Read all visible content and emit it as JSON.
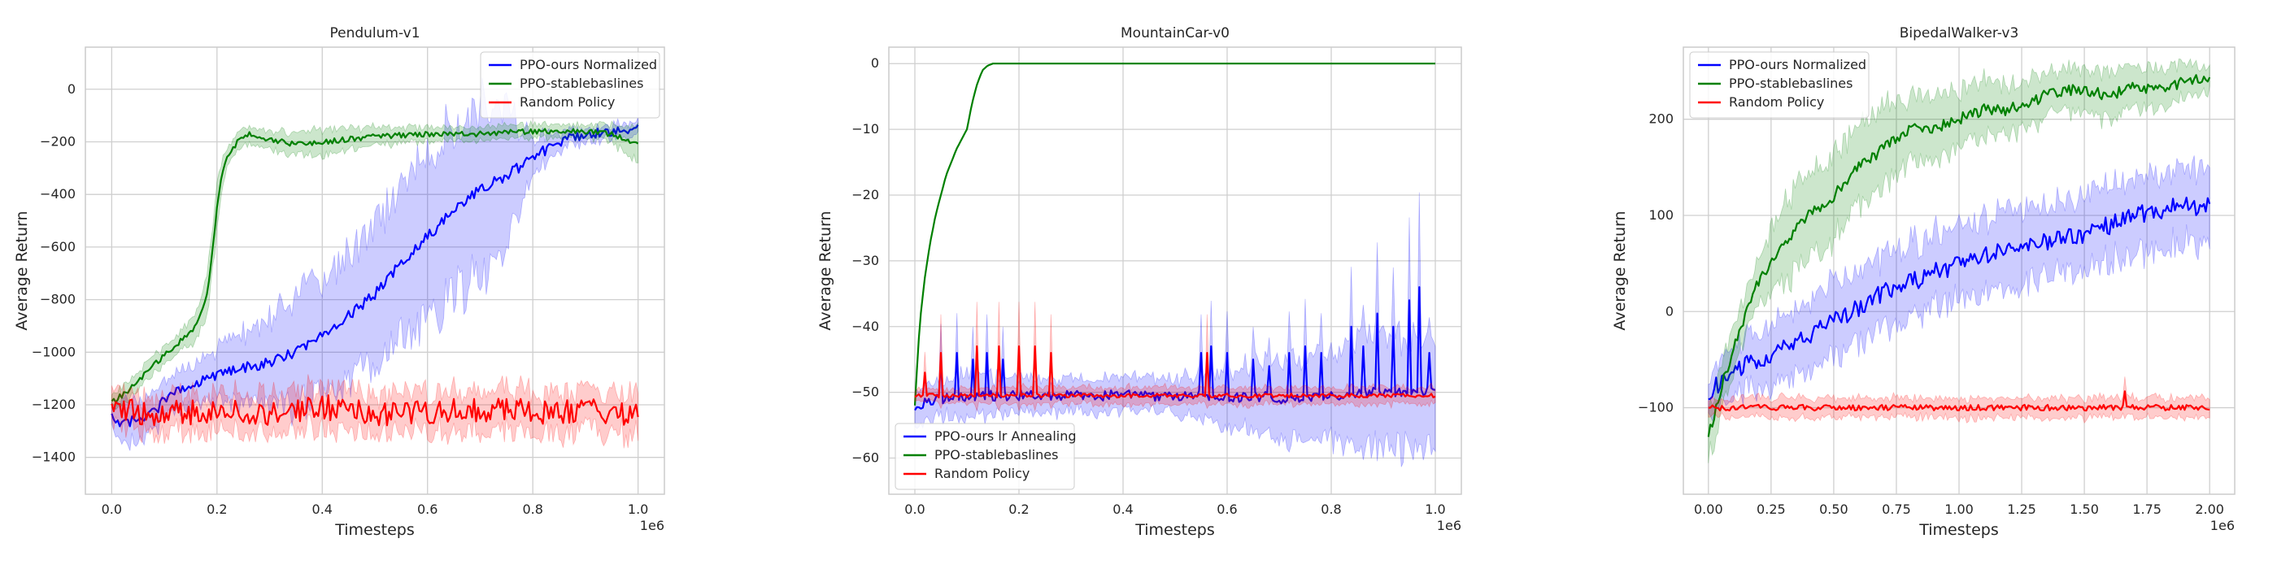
{
  "figure": {
    "background": "#ffffff",
    "grid_color": "#cfcfcf",
    "frame_color": "#cccccc"
  },
  "chart_data": [
    {
      "type": "line",
      "title": "Pendulum-v1",
      "xlabel": "Timesteps",
      "ylabel": "Average Return",
      "x_offset_label": "1e6",
      "xlim": [
        -0.05,
        1.05
      ],
      "ylim": [
        -1540,
        160
      ],
      "xticks": [
        0.0,
        0.2,
        0.4,
        0.6,
        0.8,
        1.0
      ],
      "xtick_labels": [
        "0.0",
        "0.2",
        "0.4",
        "0.6",
        "0.8",
        "1.0"
      ],
      "yticks": [
        -1400,
        -1200,
        -1000,
        -800,
        -600,
        -400,
        -200,
        0
      ],
      "ytick_labels": [
        "−1400",
        "−1200",
        "−1000",
        "−800",
        "−600",
        "−400",
        "−200",
        "0"
      ],
      "grid": true,
      "legend_position": "top-right",
      "series": [
        {
          "name": "PPO-ours Normalized",
          "color": "#0000ff",
          "noise": 20,
          "x": [
            0.0,
            0.02,
            0.05,
            0.08,
            0.1,
            0.12,
            0.15,
            0.2,
            0.25,
            0.3,
            0.35,
            0.4,
            0.45,
            0.5,
            0.55,
            0.6,
            0.65,
            0.7,
            0.75,
            0.8,
            0.85,
            0.9,
            0.95,
            1.0
          ],
          "y": [
            -1240,
            -1280,
            -1250,
            -1230,
            -1180,
            -1150,
            -1120,
            -1090,
            -1060,
            -1040,
            -1000,
            -930,
            -860,
            -780,
            -660,
            -560,
            -460,
            -380,
            -330,
            -260,
            -200,
            -170,
            -160,
            -150
          ],
          "band": [
            40,
            90,
            90,
            80,
            80,
            80,
            90,
            110,
            160,
            200,
            250,
            250,
            280,
            300,
            330,
            400,
            380,
            380,
            300,
            80,
            40,
            30,
            30,
            30
          ]
        },
        {
          "name": "PPO-stablebaslines",
          "color": "#008000",
          "noise": 10,
          "x": [
            0.0,
            0.03,
            0.06,
            0.1,
            0.13,
            0.16,
            0.18,
            0.19,
            0.2,
            0.21,
            0.22,
            0.24,
            0.26,
            0.3,
            0.35,
            0.4,
            0.45,
            0.5,
            0.6,
            0.7,
            0.8,
            0.9,
            0.95,
            1.0
          ],
          "y": [
            -1190,
            -1150,
            -1090,
            -1010,
            -960,
            -900,
            -800,
            -650,
            -450,
            -320,
            -250,
            -200,
            -170,
            -190,
            -210,
            -200,
            -190,
            -180,
            -170,
            -170,
            -160,
            -160,
            -170,
            -210
          ],
          "band": [
            30,
            40,
            40,
            40,
            40,
            60,
            90,
            90,
            90,
            60,
            40,
            40,
            40,
            40,
            50,
            60,
            50,
            40,
            30,
            30,
            30,
            30,
            40,
            80
          ]
        },
        {
          "name": "Random Policy",
          "color": "#ff0000",
          "noise": 50,
          "x": [
            0.0,
            0.1,
            0.2,
            0.3,
            0.4,
            0.5,
            0.6,
            0.7,
            0.8,
            0.9,
            1.0
          ],
          "y": [
            -1220,
            -1230,
            -1220,
            -1230,
            -1210,
            -1230,
            -1230,
            -1220,
            -1230,
            -1220,
            -1240
          ],
          "band": [
            70,
            80,
            80,
            90,
            90,
            90,
            90,
            90,
            90,
            90,
            90
          ]
        }
      ]
    },
    {
      "type": "line",
      "title": "MountainCar-v0",
      "xlabel": "Timesteps",
      "ylabel": "Average Return",
      "x_offset_label": "1e6",
      "xlim": [
        -0.05,
        1.05
      ],
      "ylim": [
        -65.5,
        2.5
      ],
      "xticks": [
        0.0,
        0.2,
        0.4,
        0.6,
        0.8,
        1.0
      ],
      "xtick_labels": [
        "0.0",
        "0.2",
        "0.4",
        "0.6",
        "0.8",
        "1.0"
      ],
      "yticks": [
        -60,
        -50,
        -40,
        -30,
        -20,
        -10,
        0
      ],
      "ytick_labels": [
        "−60",
        "−50",
        "−40",
        "−30",
        "−20",
        "−10",
        "0"
      ],
      "grid": true,
      "legend_position": "bottom-left",
      "series": [
        {
          "name": "PPO-ours lr Annealing",
          "color": "#0000ff",
          "noise": 0.8,
          "x": [
            0.0,
            0.05,
            0.1,
            0.2,
            0.3,
            0.4,
            0.5,
            0.55,
            0.6,
            0.65,
            0.7,
            0.75,
            0.8,
            0.85,
            0.9,
            0.95,
            1.0
          ],
          "y": [
            -52,
            -51,
            -50.5,
            -50.5,
            -50.5,
            -50.5,
            -50.5,
            -50.5,
            -51,
            -50.5,
            -51,
            -51,
            -50.5,
            -50,
            -50,
            -50,
            -50
          ],
          "band": [
            3,
            3,
            4,
            3,
            3,
            3,
            3,
            4,
            5,
            6,
            7,
            7,
            8,
            10,
            10,
            10,
            10
          ],
          "spikes": [
            [
              0.05,
              -45
            ],
            [
              0.08,
              -44
            ],
            [
              0.11,
              -45
            ],
            [
              0.14,
              -44
            ],
            [
              0.17,
              -45
            ],
            [
              0.55,
              -44
            ],
            [
              0.57,
              -43
            ],
            [
              0.6,
              -44
            ],
            [
              0.65,
              -45
            ],
            [
              0.68,
              -46
            ],
            [
              0.72,
              -44
            ],
            [
              0.75,
              -43
            ],
            [
              0.78,
              -44
            ],
            [
              0.84,
              -40
            ],
            [
              0.86,
              -43
            ],
            [
              0.89,
              -38
            ],
            [
              0.92,
              -40
            ],
            [
              0.95,
              -36
            ],
            [
              0.97,
              -34
            ],
            [
              0.99,
              -44
            ]
          ]
        },
        {
          "name": "PPO-stablebaslines",
          "color": "#008000",
          "noise": 0,
          "x": [
            0.0,
            0.005,
            0.01,
            0.02,
            0.03,
            0.04,
            0.05,
            0.06,
            0.07,
            0.08,
            0.09,
            0.1,
            0.11,
            0.12,
            0.13,
            0.14,
            0.15,
            0.2,
            0.4,
            0.6,
            0.8,
            1.0
          ],
          "y": [
            -52,
            -45,
            -39,
            -32,
            -27,
            -23,
            -20,
            -17,
            -15,
            -13,
            -11.5,
            -10,
            -6,
            -3,
            -1,
            -0.3,
            0,
            0,
            0,
            0,
            0,
            0
          ],
          "band": [
            0,
            0,
            0,
            0,
            0,
            0,
            0,
            0,
            0,
            0,
            0,
            0,
            0,
            0,
            0,
            0,
            0,
            0,
            0,
            0,
            0,
            0
          ]
        },
        {
          "name": "Random Policy",
          "color": "#ff0000",
          "noise": 0.3,
          "x": [
            0.0,
            0.2,
            0.4,
            0.6,
            0.8,
            1.0
          ],
          "y": [
            -50.5,
            -50.5,
            -50.5,
            -50.5,
            -50.5,
            -50.5
          ],
          "band": [
            1,
            1.5,
            1.5,
            1.5,
            1.5,
            1.5
          ],
          "spikes": [
            [
              0.02,
              -47
            ],
            [
              0.05,
              -44
            ],
            [
              0.12,
              -43
            ],
            [
              0.16,
              -43
            ],
            [
              0.2,
              -43
            ],
            [
              0.23,
              -43
            ],
            [
              0.26,
              -44
            ],
            [
              0.56,
              -44
            ]
          ]
        }
      ]
    },
    {
      "type": "line",
      "title": "BipedalWalker-v3",
      "xlabel": "Timesteps",
      "ylabel": "Average Return",
      "x_offset_label": "1e6",
      "xlim": [
        -0.1,
        2.1
      ],
      "ylim": [
        -190,
        275
      ],
      "xticks": [
        0.0,
        0.25,
        0.5,
        0.75,
        1.0,
        1.25,
        1.5,
        1.75,
        2.0
      ],
      "xtick_labels": [
        "0.00",
        "0.25",
        "0.50",
        "0.75",
        "1.00",
        "1.25",
        "1.50",
        "1.75",
        "2.00"
      ],
      "yticks": [
        -100,
        0,
        100,
        200
      ],
      "ytick_labels": [
        "−100",
        "0",
        "100",
        "200"
      ],
      "grid": true,
      "legend_position": "top-left",
      "series": [
        {
          "name": "PPO-ours Normalized",
          "color": "#0000ff",
          "noise": 10,
          "x": [
            0.0,
            0.05,
            0.1,
            0.2,
            0.3,
            0.4,
            0.5,
            0.6,
            0.7,
            0.8,
            0.9,
            1.0,
            1.1,
            1.2,
            1.3,
            1.4,
            1.5,
            1.6,
            1.7,
            1.8,
            1.9,
            2.0
          ],
          "y": [
            -90,
            -70,
            -60,
            -50,
            -40,
            -25,
            -10,
            5,
            20,
            30,
            40,
            50,
            60,
            65,
            70,
            75,
            80,
            90,
            100,
            105,
            110,
            110
          ],
          "band": [
            20,
            30,
            30,
            35,
            40,
            40,
            45,
            45,
            45,
            45,
            45,
            45,
            45,
            45,
            45,
            45,
            45,
            45,
            45,
            45,
            45,
            45
          ]
        },
        {
          "name": "PPO-stablebaslines",
          "color": "#008000",
          "noise": 6,
          "x": [
            0.0,
            0.02,
            0.05,
            0.1,
            0.15,
            0.2,
            0.25,
            0.3,
            0.4,
            0.5,
            0.6,
            0.7,
            0.8,
            0.9,
            1.0,
            1.1,
            1.2,
            1.3,
            1.4,
            1.5,
            1.6,
            1.7,
            1.8,
            1.9,
            2.0
          ],
          "y": [
            -130,
            -110,
            -80,
            -40,
            0,
            30,
            50,
            70,
            100,
            120,
            150,
            170,
            190,
            190,
            200,
            210,
            210,
            220,
            230,
            230,
            225,
            235,
            230,
            240,
            245
          ],
          "band": [
            25,
            30,
            30,
            30,
            25,
            25,
            40,
            50,
            50,
            55,
            50,
            50,
            40,
            40,
            35,
            35,
            30,
            30,
            25,
            25,
            30,
            25,
            25,
            20,
            15
          ]
        },
        {
          "name": "Random Policy",
          "color": "#ff0000",
          "noise": 3,
          "x": [
            0.0,
            0.25,
            0.5,
            0.75,
            1.0,
            1.25,
            1.5,
            1.75,
            2.0
          ],
          "y": [
            -100,
            -100,
            -100,
            -100,
            -100,
            -100,
            -100,
            -100,
            -100
          ],
          "band": [
            10,
            12,
            12,
            12,
            12,
            12,
            12,
            12,
            12
          ],
          "spikes": [
            [
              1.66,
              -83
            ]
          ]
        }
      ]
    }
  ]
}
